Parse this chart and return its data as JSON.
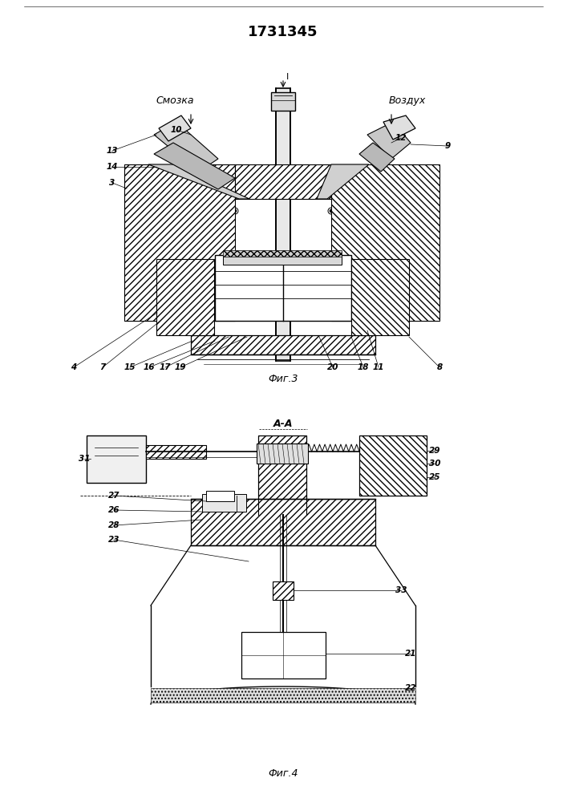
{
  "title": "1731345",
  "fig3_label": "Фиг.3",
  "fig4_label": "Фиг.4",
  "fig4_section_label": "А-А",
  "bg_color": "#ffffff",
  "line_color": "#000000"
}
